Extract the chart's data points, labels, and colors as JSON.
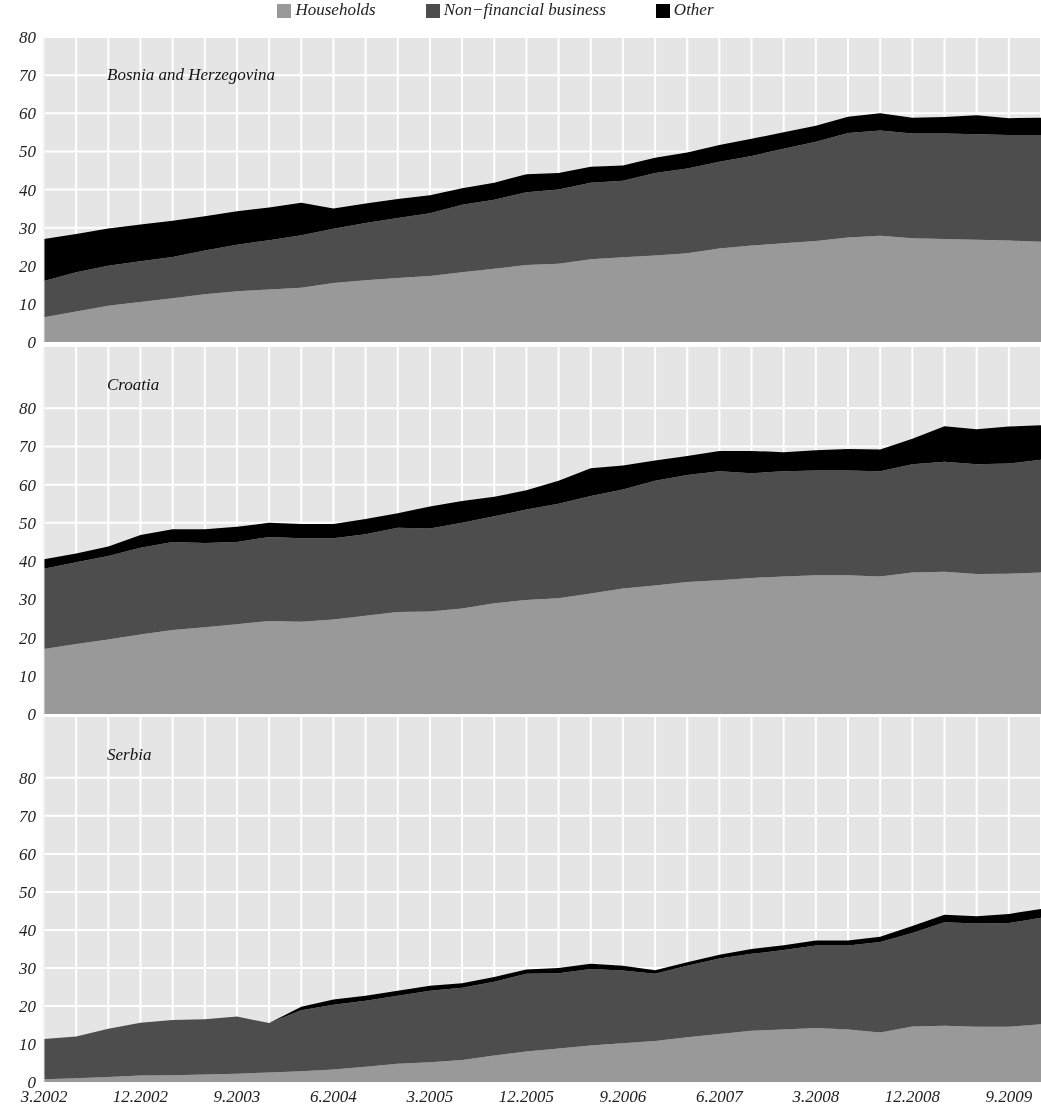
{
  "chart_data": [
    {
      "type": "area",
      "title": "Bosnia and Herzegovina",
      "stacked": true,
      "grid": true,
      "legend": "top",
      "tick_labels": "y",
      "ylim": [
        0,
        80
      ],
      "yticks": [
        0,
        10,
        20,
        30,
        40,
        50,
        60,
        70,
        80
      ],
      "categories": [
        "3.2002",
        null,
        null,
        "12.2002",
        null,
        null,
        "9.2003",
        null,
        null,
        "6.2004",
        null,
        null,
        "3.2005",
        null,
        null,
        "12.2005",
        null,
        null,
        "9.2006",
        null,
        null,
        "6.2007",
        null,
        null,
        "3.2008",
        null,
        null,
        "12.2008",
        null,
        null,
        "9.2009",
        null
      ],
      "series": [
        {
          "name": "Households",
          "color": "#999999",
          "values": [
            6.5,
            8,
            9.5,
            10.5,
            11.5,
            12.5,
            13.3,
            13.8,
            14.2,
            15.5,
            16.2,
            16.8,
            17.3,
            18.3,
            19.2,
            20.2,
            20.5,
            21.7,
            22.2,
            22.7,
            23.3,
            24.5,
            25.3,
            25.9,
            26.5,
            27.4,
            27.9,
            27.2,
            27,
            26.8,
            26.6,
            26.3
          ]
        },
        {
          "name": "Non−financial business",
          "color": "#4d4d4d",
          "values": [
            9.5,
            10.3,
            10.5,
            10.7,
            10.8,
            11.5,
            12.2,
            12.9,
            13.8,
            14.2,
            15,
            15.7,
            16.5,
            17.7,
            18.1,
            19.1,
            19.5,
            20.1,
            20.1,
            21.6,
            22.2,
            22.8,
            23.5,
            24.8,
            26,
            27.4,
            27.6,
            27.5,
            27.7,
            27.7,
            27.7,
            28
          ]
        },
        {
          "name": "Other",
          "color": "#000000",
          "values": [
            11,
            10,
            9.8,
            9.6,
            9.5,
            9,
            8.8,
            8.6,
            8.5,
            5.3,
            5.1,
            5,
            4.7,
            4.3,
            4.5,
            4.7,
            4.3,
            4.2,
            4,
            4,
            4.2,
            4.4,
            4.5,
            4.3,
            4.2,
            4.3,
            4.5,
            4.1,
            4.3,
            5,
            4.4,
            4.5
          ]
        }
      ]
    },
    {
      "type": "area",
      "title": "Croatia",
      "stacked": true,
      "grid": true,
      "tick_labels": "y",
      "ylim": [
        0,
        96
      ],
      "yticks": [
        0,
        10,
        20,
        30,
        40,
        50,
        60,
        70,
        80
      ],
      "categories": [
        "3.2002",
        null,
        null,
        "12.2002",
        null,
        null,
        "9.2003",
        null,
        null,
        "6.2004",
        null,
        null,
        "3.2005",
        null,
        null,
        "12.2005",
        null,
        null,
        "9.2006",
        null,
        null,
        "6.2007",
        null,
        null,
        "3.2008",
        null,
        null,
        "12.2008",
        null,
        null,
        "9.2009",
        null
      ],
      "series": [
        {
          "color": "#999999",
          "values": [
            17,
            18.3,
            19.5,
            20.8,
            22,
            22.7,
            23.5,
            24.3,
            24.1,
            24.7,
            25.7,
            26.7,
            26.8,
            27.6,
            29,
            29.8,
            30.3,
            31.5,
            32.8,
            33.6,
            34.5,
            35,
            35.6,
            36,
            36.3,
            36.3,
            36,
            37,
            37.2,
            36.6,
            36.7,
            37
          ]
        },
        {
          "color": "#4d4d4d",
          "values": [
            21,
            21.4,
            21.8,
            22.7,
            23,
            22,
            21.5,
            22,
            21.9,
            21.3,
            21.3,
            22,
            21.7,
            22.4,
            22.7,
            23.7,
            24.7,
            25.5,
            25.9,
            27.4,
            28,
            28.5,
            27.4,
            27.5,
            27.4,
            27.4,
            27.5,
            28.3,
            28.8,
            28.7,
            28.8,
            29.5
          ]
        },
        {
          "color": "#000000",
          "values": [
            2.5,
            2.3,
            2.5,
            3.3,
            3.3,
            3.6,
            4,
            3.7,
            3.7,
            3.7,
            4,
            3.8,
            5.8,
            5.7,
            5.1,
            5,
            6,
            7.3,
            6.3,
            5.3,
            5,
            5.3,
            5.8,
            5,
            5.3,
            5.6,
            5.7,
            6.7,
            9.3,
            9.2,
            9.7,
            9
          ]
        }
      ]
    },
    {
      "type": "area",
      "title": "Serbia",
      "stacked": true,
      "grid": true,
      "ylim": [
        0,
        96
      ],
      "yticks": [
        0,
        10,
        20,
        30,
        40,
        50,
        60,
        70,
        80
      ],
      "categories": [
        "3.2002",
        null,
        null,
        "12.2002",
        null,
        null,
        "9.2003",
        null,
        null,
        "6.2004",
        null,
        null,
        "3.2005",
        null,
        null,
        "12.2005",
        null,
        null,
        "9.2006",
        null,
        null,
        "6.2007",
        null,
        null,
        "3.2008",
        null,
        null,
        "12.2008",
        null,
        null,
        "9.2009",
        null
      ],
      "series": [
        {
          "color": "#999999",
          "values": [
            0.7,
            1,
            1.3,
            1.7,
            1.8,
            2,
            2.2,
            2.5,
            2.8,
            3.3,
            4,
            4.8,
            5.2,
            5.8,
            7,
            8,
            8.8,
            9.6,
            10.2,
            10.8,
            11.8,
            12.6,
            13.5,
            13.8,
            14.2,
            13.8,
            13,
            14.6,
            14.8,
            14.5,
            14.5,
            15.2
          ]
        },
        {
          "color": "#4d4d4d",
          "values": [
            10.6,
            11,
            12.7,
            13.9,
            14.5,
            14.5,
            15,
            13,
            16.1,
            17,
            17.4,
            17.9,
            18.8,
            19,
            19.4,
            20.5,
            19.8,
            20.1,
            19.1,
            17.7,
            18.8,
            19.9,
            20.2,
            20.9,
            21.7,
            22.1,
            23.8,
            24.6,
            27.2,
            27.2,
            27.3,
            28
          ]
        },
        {
          "color": "#000000",
          "values": [
            0,
            0,
            0,
            0,
            0,
            0,
            0,
            0,
            0.9,
            1.4,
            1.3,
            1.3,
            1.3,
            1.2,
            1.2,
            1.1,
            1.4,
            1.4,
            1.3,
            0.9,
            0.9,
            1,
            1.3,
            1.3,
            1.3,
            1.3,
            1.4,
            1.8,
            2,
            1.9,
            2.4,
            2.3
          ]
        }
      ]
    }
  ]
}
